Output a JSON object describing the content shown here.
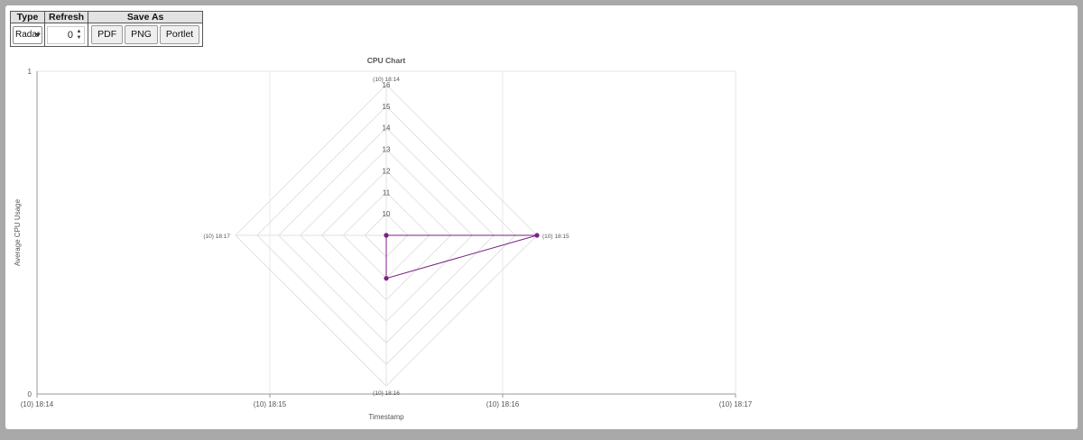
{
  "toolbar": {
    "headers": {
      "type": "Type",
      "refresh": "Refresh",
      "save_as": "Save As"
    },
    "type_value": "Radar",
    "refresh_value": "0",
    "buttons": {
      "pdf": "PDF",
      "png": "PNG",
      "portlet": "Portlet"
    }
  },
  "chart_data": {
    "type": "radar",
    "title": "CPU Chart",
    "xlabel": "Timestamp",
    "ylabel": "Average CPU Usage",
    "x_ticks": [
      "(10) 18:14",
      "(10) 18:15",
      "(10) 18:16",
      "(10) 18:17"
    ],
    "y_ticks": [
      "0",
      "1"
    ],
    "radar_labels": [
      "(10) 18:14",
      "(10) 18:15",
      "(10) 18:16",
      "(10) 18:17"
    ],
    "radial_ticks": [
      "10",
      "11",
      "12",
      "13",
      "14",
      "15",
      "16"
    ],
    "radial_range": [
      9,
      16
    ],
    "series": [
      {
        "values": [
          9,
          16,
          11,
          9
        ],
        "color": "#7b1f86"
      }
    ],
    "grid": true,
    "legend": "none"
  }
}
